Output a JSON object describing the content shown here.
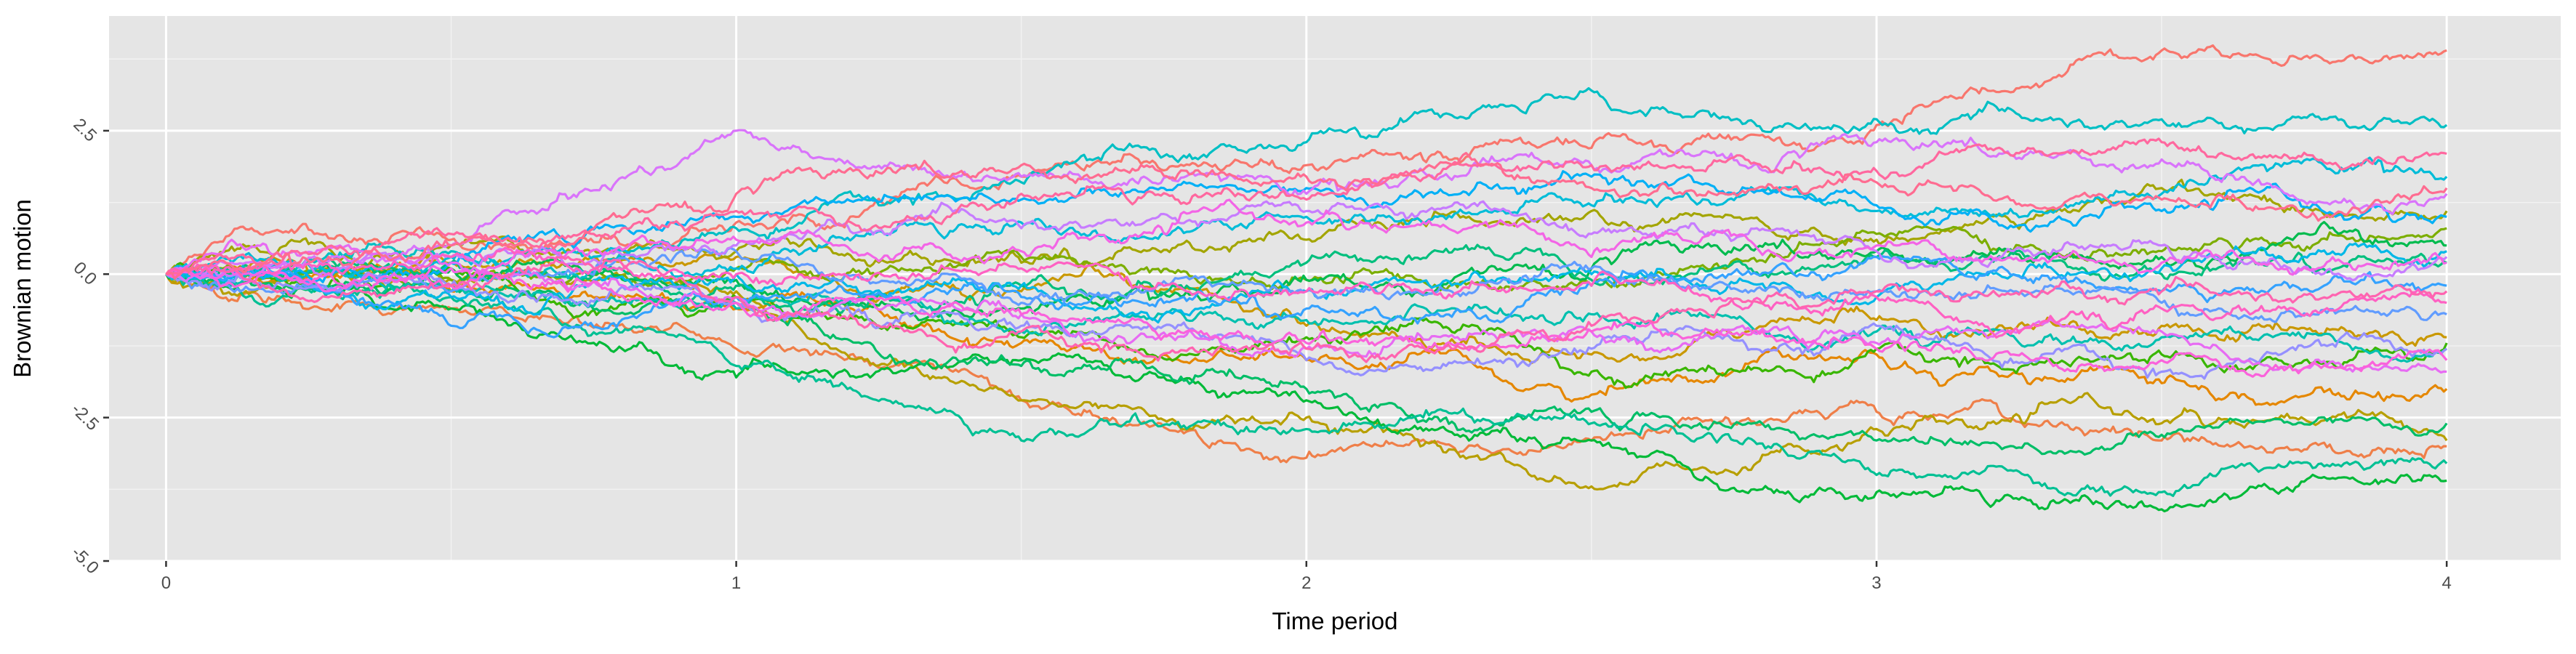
{
  "chart_data": {
    "type": "line",
    "title": "",
    "xlabel": "Time period",
    "ylabel": "Brownian motion",
    "xlim": [
      -0.1,
      4.2
    ],
    "ylim": [
      -5.0,
      4.5
    ],
    "x_ticks": [
      0,
      1,
      2,
      3,
      4
    ],
    "x_tick_labels": [
      "0",
      "1",
      "2",
      "3",
      "4"
    ],
    "y_ticks": [
      -5.0,
      -2.5,
      0.0,
      2.5
    ],
    "y_tick_labels": [
      "-5.0",
      "-2.5",
      "0.0",
      "2.5"
    ],
    "grid": true,
    "legend": "none",
    "series_style": "30 simulated Brownian motion paths from t = 0 to t = 4, starting at 0",
    "series": [
      {
        "color": "#F8766D",
        "x": [
          0,
          0.5,
          1,
          1.5,
          2,
          2.5,
          3,
          3.5,
          4
        ],
        "y": [
          0,
          0.6,
          0.9,
          1.7,
          1.9,
          2.2,
          2.6,
          3.9,
          3.9
        ]
      },
      {
        "color": "#EF7F49",
        "x": [
          0,
          0.5,
          1,
          1.5,
          2,
          2.5,
          3,
          3.5,
          4
        ],
        "y": [
          0,
          -0.6,
          -1.3,
          -2.2,
          -3.2,
          -2.9,
          -2.4,
          -2.9,
          -3.0
        ]
      },
      {
        "color": "#E58700",
        "x": [
          0,
          0.5,
          1,
          1.5,
          2,
          2.5,
          3,
          3.5,
          4
        ],
        "y": [
          0,
          -0.3,
          -0.6,
          -1.2,
          -1.5,
          -2.1,
          -1.4,
          -1.9,
          -2.0
        ]
      },
      {
        "color": "#C99800",
        "x": [
          0,
          0.5,
          1,
          1.5,
          2,
          2.5,
          3,
          3.5,
          4
        ],
        "y": [
          0,
          0.2,
          0.3,
          -0.3,
          -0.9,
          -1.4,
          -0.8,
          -0.9,
          -1.1
        ]
      },
      {
        "color": "#B79F00",
        "x": [
          0,
          0.5,
          1,
          1.5,
          2,
          2.5,
          3,
          3.5,
          4
        ],
        "y": [
          0,
          -0.1,
          -0.3,
          -2.2,
          -2.5,
          -3.7,
          -2.7,
          -2.6,
          -2.9
        ]
      },
      {
        "color": "#A3A500",
        "x": [
          0,
          0.5,
          1,
          1.5,
          2,
          2.5,
          3,
          3.5,
          4
        ],
        "y": [
          0,
          0.5,
          0.4,
          0.2,
          0.6,
          1.1,
          0.6,
          1.5,
          1.1
        ]
      },
      {
        "color": "#7CAE00",
        "x": [
          0,
          0.5,
          1,
          1.5,
          2,
          2.5,
          3,
          3.5,
          4
        ],
        "y": [
          0,
          -0.1,
          0.1,
          0.3,
          -0.1,
          -0.2,
          0.7,
          0.4,
          0.8
        ]
      },
      {
        "color": "#39B600",
        "x": [
          0,
          0.5,
          1,
          1.5,
          2,
          2.5,
          3,
          3.5,
          4
        ],
        "y": [
          0,
          0.1,
          -0.4,
          -1.1,
          -1.1,
          -1.7,
          -1.3,
          -1.4,
          -1.2
        ]
      },
      {
        "color": "#00BA38",
        "x": [
          0,
          0.5,
          1,
          1.5,
          2,
          2.5,
          3,
          3.5,
          4
        ],
        "y": [
          0,
          -0.6,
          -1.8,
          -1.5,
          -2.2,
          -2.9,
          -3.8,
          -4.1,
          -3.6
        ]
      },
      {
        "color": "#00BB4E",
        "x": [
          0,
          0.5,
          1,
          1.5,
          2,
          2.5,
          3,
          3.5,
          4
        ],
        "y": [
          0,
          0.1,
          -0.1,
          -0.6,
          -0.1,
          0.1,
          0.4,
          0.3,
          0.5
        ]
      },
      {
        "color": "#00BE67",
        "x": [
          0,
          0.5,
          1,
          1.5,
          2,
          2.5,
          3,
          3.5,
          4
        ],
        "y": [
          0,
          -0.2,
          -0.5,
          -1.6,
          -2.0,
          -2.4,
          -2.9,
          -2.8,
          -2.6
        ]
      },
      {
        "color": "#00BF7D",
        "x": [
          0,
          0.5,
          1,
          1.5,
          2,
          2.5,
          3,
          3.5,
          4
        ],
        "y": [
          0,
          0.2,
          -0.2,
          -0.2,
          0.2,
          -0.1,
          0.3,
          0.0,
          0.2
        ]
      },
      {
        "color": "#00C094",
        "x": [
          0,
          0.5,
          1,
          1.5,
          2,
          2.5,
          3,
          3.5,
          4
        ],
        "y": [
          0,
          -0.4,
          -1.6,
          -2.9,
          -2.7,
          -2.6,
          -3.5,
          -3.8,
          -3.3
        ]
      },
      {
        "color": "#00C0AF",
        "x": [
          0,
          0.5,
          1,
          1.5,
          2,
          2.5,
          3,
          3.5,
          4
        ],
        "y": [
          0,
          -0.3,
          -0.6,
          -1.0,
          -0.8,
          -0.7,
          -1.0,
          -1.1,
          -1.3
        ]
      },
      {
        "color": "#00BFC4",
        "x": [
          0,
          0.5,
          1,
          1.5,
          2,
          2.5,
          3,
          3.5,
          4
        ],
        "y": [
          0,
          0.4,
          0.8,
          1.6,
          2.3,
          3.2,
          2.7,
          2.7,
          2.6
        ]
      },
      {
        "color": "#00BCD8",
        "x": [
          0,
          0.5,
          1,
          1.5,
          2,
          2.5,
          3,
          3.5,
          4
        ],
        "y": [
          0,
          0.3,
          0.1,
          0.9,
          1.0,
          1.2,
          1.1,
          1.4,
          1.7
        ]
      },
      {
        "color": "#00B8E7",
        "x": [
          0,
          0.5,
          1,
          1.5,
          2,
          2.5,
          3,
          3.5,
          4
        ],
        "y": [
          0,
          -0.4,
          0.0,
          -0.2,
          -0.3,
          0.0,
          -0.4,
          0.1,
          0.4
        ]
      },
      {
        "color": "#00B0F6",
        "x": [
          0,
          0.5,
          1,
          1.5,
          2,
          2.5,
          3,
          3.5,
          4
        ],
        "y": [
          0,
          0.2,
          1.0,
          1.3,
          1.5,
          1.7,
          1.2,
          1.1,
          1.0
        ]
      },
      {
        "color": "#35A2FF",
        "x": [
          0,
          0.5,
          1,
          1.5,
          2,
          2.5,
          3,
          3.5,
          4
        ],
        "y": [
          0,
          -0.9,
          -0.4,
          -0.4,
          -0.6,
          -0.2,
          0.3,
          -0.3,
          -0.2
        ]
      },
      {
        "color": "#619CFF",
        "x": [
          0,
          0.5,
          1,
          1.5,
          2,
          2.5,
          3,
          3.5,
          4
        ],
        "y": [
          0,
          -0.3,
          0.4,
          -0.5,
          -0.3,
          0.1,
          -0.3,
          -0.5,
          -0.7
        ]
      },
      {
        "color": "#9590FF",
        "x": [
          0,
          0.5,
          1,
          1.5,
          2,
          2.5,
          3,
          3.5,
          4
        ],
        "y": [
          0,
          -0.2,
          -0.5,
          -0.9,
          -1.5,
          -1.3,
          -0.9,
          -1.7,
          -1.3
        ]
      },
      {
        "color": "#C77CFF",
        "x": [
          0,
          0.5,
          1,
          1.5,
          2,
          2.5,
          3,
          3.5,
          4
        ],
        "y": [
          0,
          0.3,
          0.5,
          0.8,
          1.1,
          0.7,
          0.4,
          0.5,
          0.3
        ]
      },
      {
        "color": "#D974FB",
        "x": [
          0,
          0.5,
          1,
          1.5,
          2,
          2.5,
          3,
          3.5,
          4
        ],
        "y": [
          0,
          0.5,
          2.5,
          1.7,
          1.4,
          1.9,
          2.3,
          2.0,
          1.4
        ]
      },
      {
        "color": "#E76BF3",
        "x": [
          0,
          0.5,
          1,
          1.5,
          2,
          2.5,
          3,
          3.5,
          4
        ],
        "y": [
          0,
          0.2,
          -0.4,
          -0.7,
          -1.3,
          -1.0,
          -1.2,
          -1.0,
          -1.7
        ]
      },
      {
        "color": "#F365E6",
        "x": [
          0,
          0.5,
          1,
          1.5,
          2,
          2.5,
          3,
          3.5,
          4
        ],
        "y": [
          0,
          0.1,
          0.6,
          0.4,
          0.9,
          0.3,
          0.5,
          0.2,
          0.2
        ]
      },
      {
        "color": "#FA62DB",
        "x": [
          0,
          0.5,
          1,
          1.5,
          2,
          2.5,
          3,
          3.5,
          4
        ],
        "y": [
          0,
          -0.2,
          -0.5,
          -0.7,
          -1.2,
          -1.0,
          -1.3,
          -1.5,
          -1.5
        ]
      },
      {
        "color": "#FF61C3",
        "x": [
          0,
          0.5,
          1,
          1.5,
          2,
          2.5,
          3,
          3.5,
          4
        ],
        "y": [
          0,
          0.3,
          0.0,
          0.1,
          -0.3,
          -0.2,
          -0.4,
          -0.6,
          -0.5
        ]
      },
      {
        "color": "#FF64B0",
        "x": [
          0,
          0.5,
          1,
          1.5,
          2,
          2.5,
          3,
          3.5,
          4
        ],
        "y": [
          0,
          -0.2,
          -0.4,
          -1.0,
          -1.3,
          -0.9,
          -0.3,
          -0.3,
          -0.3
        ]
      },
      {
        "color": "#FF689F",
        "x": [
          0,
          0.5,
          1,
          1.5,
          2,
          2.5,
          3,
          3.5,
          4
        ],
        "y": [
          0,
          0.7,
          1.1,
          1.4,
          1.3,
          1.9,
          1.8,
          2.3,
          2.1
        ]
      },
      {
        "color": "#FF6C91",
        "x": [
          0,
          0.5,
          1,
          1.5,
          2,
          2.5,
          3,
          3.5,
          4
        ],
        "y": [
          0,
          0.5,
          1.4,
          1.9,
          1.7,
          1.5,
          1.6,
          1.3,
          1.5
        ]
      }
    ]
  }
}
